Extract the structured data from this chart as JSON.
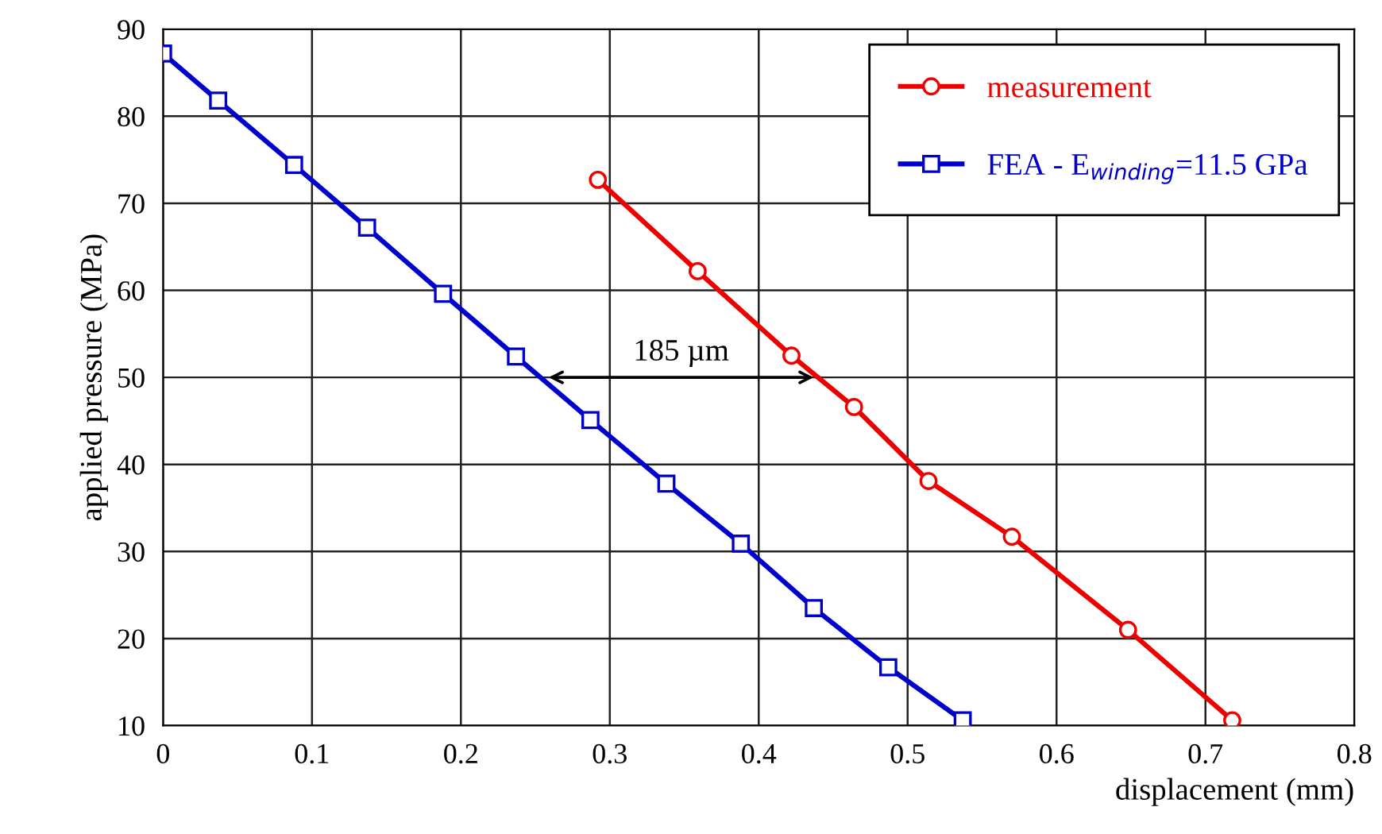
{
  "chart_data": {
    "type": "line",
    "xlabel": "displacement (mm)",
    "ylabel": "applied pressure (MPa)",
    "series": [
      {
        "name": "measurement",
        "color": "#ee0000",
        "marker": "circle",
        "x": [
          0.292,
          0.359,
          0.422,
          0.464,
          0.514,
          0.57,
          0.648,
          0.718
        ],
        "values": [
          72.7,
          62.2,
          52.5,
          46.6,
          38.1,
          31.7,
          21.0,
          10.6
        ]
      },
      {
        "name": "FEA - E$_{winding}$=11.5 GPa",
        "color": "#0000cc",
        "marker": "square",
        "x": [
          0.0,
          0.037,
          0.088,
          0.137,
          0.188,
          0.237,
          0.287,
          0.338,
          0.388,
          0.437,
          0.487,
          0.537
        ],
        "values": [
          87.2,
          81.8,
          74.4,
          67.2,
          59.6,
          52.4,
          45.1,
          37.8,
          30.9,
          23.5,
          16.7,
          10.6
        ]
      }
    ],
    "annotations": [
      {
        "text": "185 µm",
        "x": 0.256,
        "y": 50
      }
    ],
    "xlim": [
      0,
      0.8
    ],
    "ylim": [
      10,
      90
    ],
    "xticks": [
      0,
      0.1,
      0.2,
      0.3,
      0.4,
      0.5,
      0.6,
      0.7,
      0.8
    ],
    "yticks": [
      10,
      20,
      30,
      40,
      50,
      60,
      70,
      80,
      90
    ],
    "grid": true,
    "legend": "top right"
  }
}
